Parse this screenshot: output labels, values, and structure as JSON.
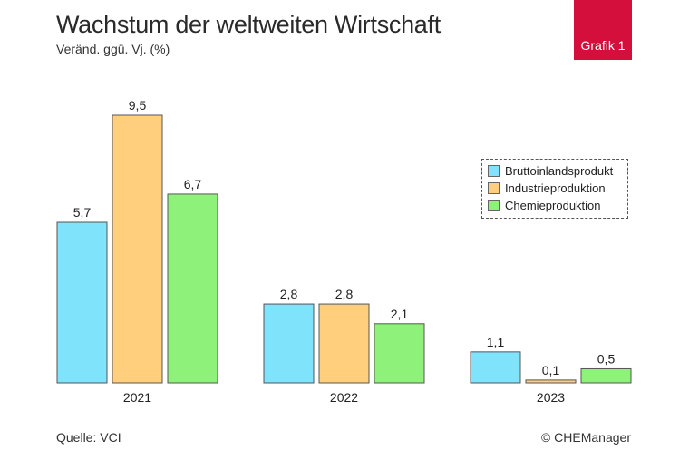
{
  "header": {
    "title": "Wachstum der weltweiten Wirtschaft",
    "subtitle": "Veränd. ggü. Vj. (%)",
    "badge": "Grafik 1"
  },
  "footer": {
    "source": "Quelle: VCI",
    "copyright": "© CHEManager"
  },
  "chart_data": {
    "type": "bar",
    "categories": [
      "2021",
      "2022",
      "2023"
    ],
    "series": [
      {
        "name": "Bruttoinlandsprodukt",
        "values": [
          5.7,
          2.8,
          1.1
        ],
        "labels": [
          "5,7",
          "2,8",
          "1,1"
        ],
        "color": "#7fe3fb"
      },
      {
        "name": "Industrieproduktion",
        "values": [
          9.5,
          2.8,
          0.1
        ],
        "labels": [
          "9,5",
          "2,8",
          "0,1"
        ],
        "color": "#ffcf7e"
      },
      {
        "name": "Chemieproduktion",
        "values": [
          6.7,
          2.1,
          0.5
        ],
        "labels": [
          "6,7",
          "2,1",
          "0,5"
        ],
        "color": "#8ef27a"
      }
    ],
    "title": "Wachstum der weltweiten Wirtschaft",
    "ylabel": "Veränd. ggü. Vj. (%)",
    "ylim": [
      0,
      9.5
    ],
    "grid": false,
    "legend_position": "right"
  }
}
